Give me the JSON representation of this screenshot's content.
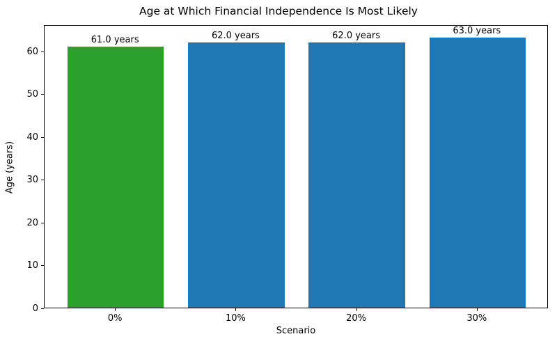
{
  "chart_data": {
    "type": "bar",
    "title": "Age at Which Financial Independence Is Most Likely",
    "xlabel": "Scenario",
    "ylabel": "Age (years)",
    "categories": [
      "0%",
      "10%",
      "20%",
      "30%"
    ],
    "values": [
      61.0,
      62.0,
      62.0,
      63.0
    ],
    "bar_labels": [
      "61.0 years",
      "62.0 years",
      "62.0 years",
      "63.0 years"
    ],
    "bar_colors": [
      "#2ca02c",
      "#1f77b4",
      "#1f77b4",
      "#1f77b4"
    ],
    "ylim": [
      0,
      66.15
    ],
    "yticks": [
      0,
      10,
      20,
      30,
      40,
      50,
      60
    ],
    "grid": false,
    "legend_position": "none",
    "plot_background": "#ffffff",
    "frame_color": "#000000",
    "text_color": "#000000"
  }
}
